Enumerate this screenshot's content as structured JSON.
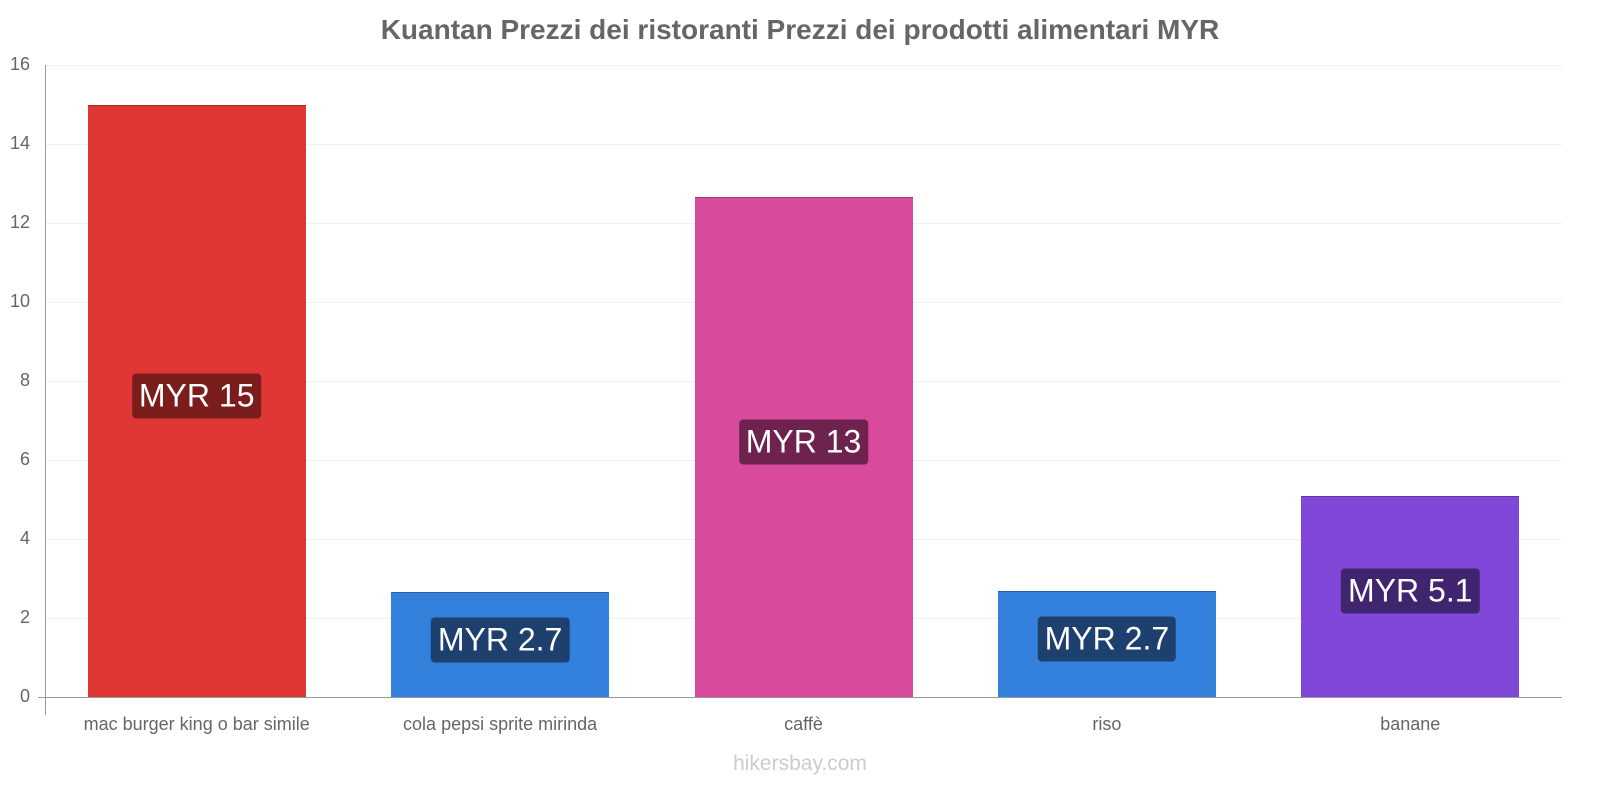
{
  "chart_data": {
    "type": "bar",
    "title": "Kuantan Prezzi dei ristoranti Prezzi dei prodotti alimentari MYR",
    "categories": [
      "mac burger king o bar simile",
      "cola pepsi sprite mirinda",
      "caffè",
      "riso",
      "banane"
    ],
    "values": [
      15,
      2.65,
      12.66,
      2.68,
      5.09
    ],
    "value_labels": [
      "MYR 15",
      "MYR 2.7",
      "MYR 13",
      "MYR 2.7",
      "MYR 5.1"
    ],
    "colors": [
      "#e03636",
      "#3481dd",
      "#d84a9c",
      "#3481dd",
      "#8147d8"
    ],
    "label_bg": [
      "#7b1d1d",
      "#1d406e",
      "#6e234f",
      "#1d406e",
      "#40256e"
    ],
    "xlabel": "",
    "ylabel": "",
    "ylim": [
      0,
      16
    ],
    "yticks": [
      "0",
      "2",
      "4",
      "6",
      "8",
      "10",
      "12",
      "14",
      "16"
    ],
    "grid": true,
    "legend": null
  },
  "watermark": "hikersbay.com"
}
